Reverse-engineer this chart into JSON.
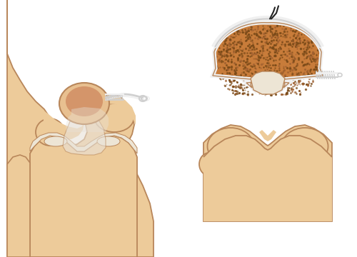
{
  "bone_color": "#EDCB9A",
  "bone_outline": "#B8865A",
  "cartilage_color": "#EDE5D5",
  "patella_dark": "#D4956A",
  "patella_light": "#E8C090",
  "cancellous_base": "#C87C3A",
  "cancellous_dark": "#7A4A18",
  "white_suture": "#F0F0F0",
  "lt_gray": "#D0D0D0",
  "dark_suture": "#222222",
  "ligament_color": "#E8E2D8",
  "tendon_color": "#D8D0C0",
  "bg_color": "#FFFFFF",
  "fig_width": 5.0,
  "fig_height": 3.6,
  "dpi": 100
}
